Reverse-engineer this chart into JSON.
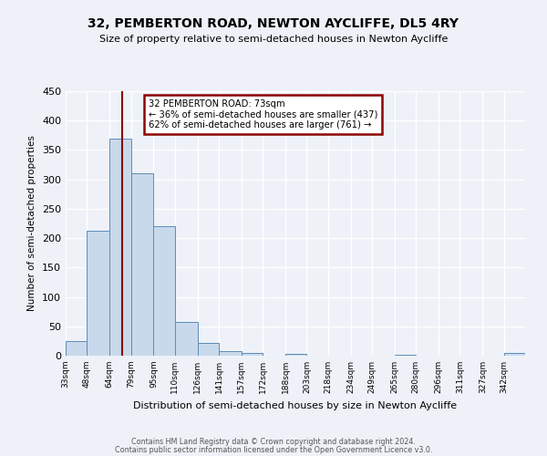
{
  "title": "32, PEMBERTON ROAD, NEWTON AYCLIFFE, DL5 4RY",
  "subtitle": "Size of property relative to semi-detached houses in Newton Aycliffe",
  "xlabel": "Distribution of semi-detached houses by size in Newton Aycliffe",
  "ylabel": "Number of semi-detached properties",
  "bin_labels": [
    "33sqm",
    "48sqm",
    "64sqm",
    "79sqm",
    "95sqm",
    "110sqm",
    "126sqm",
    "141sqm",
    "157sqm",
    "172sqm",
    "188sqm",
    "203sqm",
    "218sqm",
    "234sqm",
    "249sqm",
    "265sqm",
    "280sqm",
    "296sqm",
    "311sqm",
    "327sqm",
    "342sqm"
  ],
  "bin_edges": [
    33,
    48,
    64,
    79,
    95,
    110,
    126,
    141,
    157,
    172,
    188,
    203,
    218,
    234,
    249,
    265,
    280,
    296,
    311,
    327,
    342,
    357
  ],
  "bar_heights": [
    25,
    212,
    370,
    310,
    220,
    57,
    22,
    8,
    5,
    0,
    3,
    0,
    0,
    0,
    0,
    1,
    0,
    0,
    0,
    0,
    5
  ],
  "bar_color": "#c9d9ec",
  "bar_edge_color": "#5b8db8",
  "property_line_x": 73,
  "property_line_color": "#8b0000",
  "annotation_title": "32 PEMBERTON ROAD: 73sqm",
  "annotation_line1": "← 36% of semi-detached houses are smaller (437)",
  "annotation_line2": "62% of semi-detached houses are larger (761) →",
  "annotation_box_color": "#8b0000",
  "ylim": [
    0,
    450
  ],
  "yticks": [
    0,
    50,
    100,
    150,
    200,
    250,
    300,
    350,
    400,
    450
  ],
  "footer1": "Contains HM Land Registry data © Crown copyright and database right 2024.",
  "footer2": "Contains public sector information licensed under the Open Government Licence v3.0.",
  "bg_color": "#eef2f8",
  "grid_color": "#ffffff"
}
